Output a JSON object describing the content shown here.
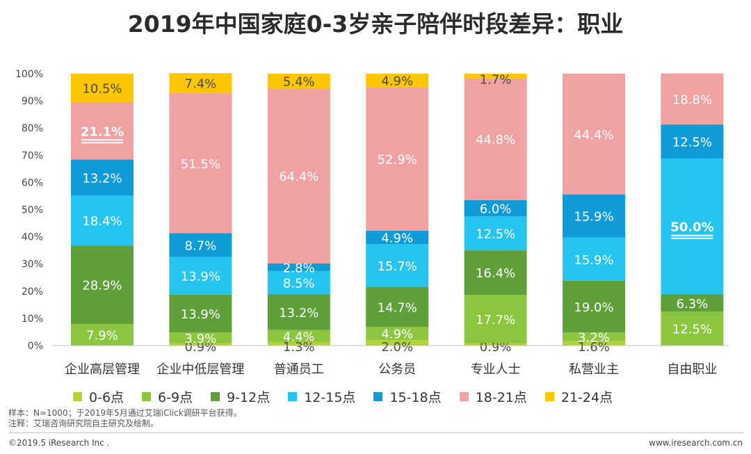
{
  "title": "2019年中国家庭0-3岁亲子陪伴时段差异：职业",
  "chart_data": {
    "type": "bar",
    "stacked": true,
    "ylim": [
      0,
      100
    ],
    "yticks": [
      "0%",
      "10%",
      "20%",
      "30%",
      "40%",
      "50%",
      "60%",
      "70%",
      "80%",
      "90%",
      "100%"
    ],
    "categories": [
      "企业高层管理",
      "企业中低层管理",
      "普通员工",
      "公务员",
      "专业人士",
      "私营业主",
      "自由职业"
    ],
    "series": [
      {
        "name": "0-6点",
        "color": "#b5d234",
        "values": [
          0,
          0.9,
          1.3,
          2.0,
          0.9,
          1.6,
          0
        ],
        "labels": [
          "",
          "0.9%",
          "1.3%",
          "2.0%",
          "0.9%",
          "1.6%",
          ""
        ]
      },
      {
        "name": "6-9点",
        "color": "#8cc63e",
        "values": [
          7.9,
          3.9,
          4.4,
          4.9,
          17.7,
          3.2,
          12.5
        ],
        "labels": [
          "7.9%",
          "3.9%",
          "4.4%",
          "4.9%",
          "17.7%",
          "3.2%",
          "12.5%"
        ]
      },
      {
        "name": "9-12点",
        "color": "#5e9f3a",
        "values": [
          28.9,
          13.9,
          13.2,
          14.7,
          16.4,
          19.0,
          6.3
        ],
        "labels": [
          "28.9%",
          "13.9%",
          "13.2%",
          "14.7%",
          "16.4%",
          "19.0%",
          "6.3%"
        ]
      },
      {
        "name": "12-15点",
        "color": "#26c5ef",
        "values": [
          18.4,
          13.9,
          8.5,
          15.7,
          12.5,
          15.9,
          50.0
        ],
        "labels": [
          "18.4%",
          "13.9%",
          "8.5%",
          "15.7%",
          "12.5%",
          "15.9%",
          "50.0%"
        ]
      },
      {
        "name": "15-18点",
        "color": "#0e9bd8",
        "values": [
          13.2,
          8.7,
          2.8,
          4.9,
          6.0,
          15.9,
          12.5
        ],
        "labels": [
          "13.2%",
          "8.7%",
          "2.8%",
          "4.9%",
          "6.0%",
          "15.9%",
          "12.5%"
        ]
      },
      {
        "name": "18-21点",
        "color": "#f0a1a1",
        "values": [
          21.1,
          51.5,
          64.4,
          52.9,
          44.8,
          44.4,
          18.8
        ],
        "labels": [
          "21.1%",
          "51.5%",
          "64.4%",
          "52.9%",
          "44.8%",
          "44.4%",
          "18.8%"
        ]
      },
      {
        "name": "21-24点",
        "color": "#fcc700",
        "values": [
          10.5,
          7.4,
          5.4,
          4.9,
          1.7,
          0,
          0
        ],
        "labels": [
          "10.5%",
          "7.4%",
          "5.4%",
          "4.9%",
          "1.7%",
          "",
          ""
        ]
      }
    ],
    "highlight_labels": [
      {
        "category": "企业高层管理",
        "series": "18-21点",
        "label": "21.1%"
      },
      {
        "category": "自由职业",
        "series": "12-15点",
        "label": "50.0%"
      }
    ]
  },
  "notes": {
    "sample": "样本：N=1000；于2019年5月通过艾瑞iClick调研平台获得。",
    "source": "注释：艾瑞咨询研究院自主研究及绘制。"
  },
  "footer": {
    "copyright": "©2019.5 iResearch Inc .",
    "website": "www.iresearch.com.cn"
  }
}
